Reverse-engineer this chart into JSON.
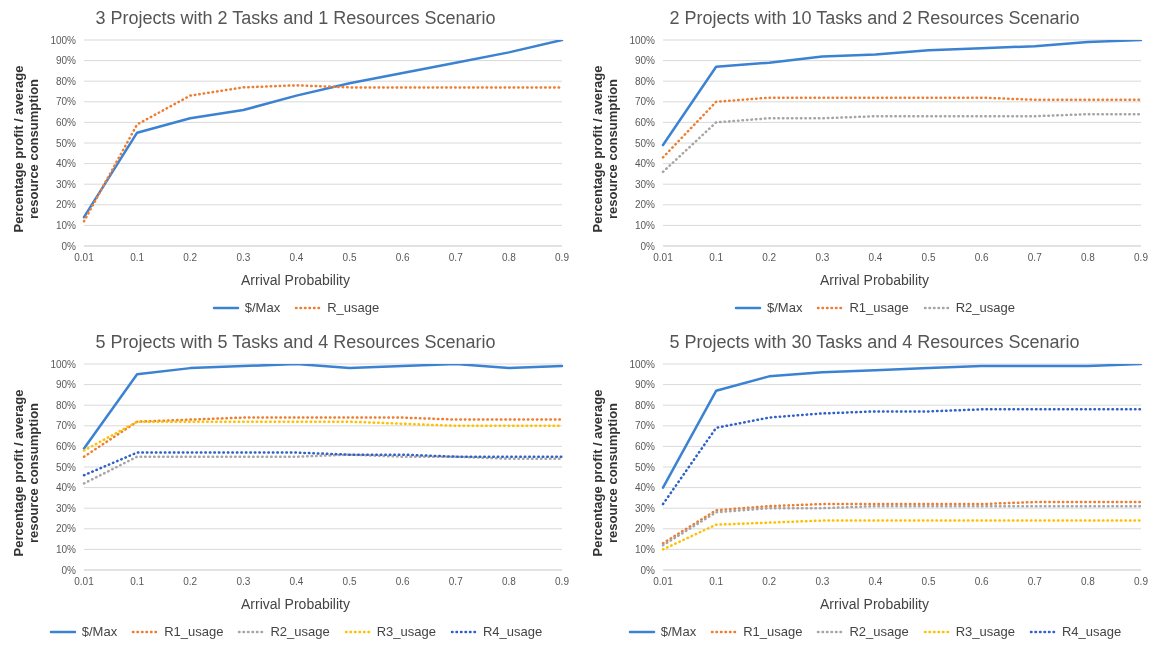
{
  "chart_data": [
    {
      "type": "line",
      "title": "3 Projects with 2 Tasks and 1 Resources Scenario",
      "xlabel": "Arrival Probability",
      "ylabel": "Percentage profit / average resource consumption",
      "categories": [
        "0.01",
        "0.1",
        "0.2",
        "0.3",
        "0.4",
        "0.5",
        "0.6",
        "0.7",
        "0.8",
        "0.9"
      ],
      "ylim": [
        0,
        100
      ],
      "yticks": [
        {
          "value": 0,
          "label": "0%"
        },
        {
          "value": 10,
          "label": "10%"
        },
        {
          "value": 20,
          "label": "20%"
        },
        {
          "value": 30,
          "label": "30%"
        },
        {
          "value": 40,
          "label": "40%"
        },
        {
          "value": 50,
          "label": "50%"
        },
        {
          "value": 60,
          "label": "60%"
        },
        {
          "value": 70,
          "label": "70%"
        },
        {
          "value": 80,
          "label": "80%"
        },
        {
          "value": 90,
          "label": "90%"
        },
        {
          "value": 100,
          "label": "100%"
        }
      ],
      "grid": "y",
      "legend": "bottom",
      "marker": "none",
      "series": [
        {
          "name": "$/Max",
          "color": "#3c82d2",
          "line_style": "solid",
          "values": [
            14,
            55,
            62,
            66,
            73,
            79,
            84,
            89,
            94,
            100
          ]
        },
        {
          "name": "R_usage",
          "color": "#ed7d31",
          "line_style": "dotted",
          "values": [
            12,
            59,
            73,
            77,
            78,
            77,
            77,
            77,
            77,
            77
          ]
        }
      ]
    },
    {
      "type": "line",
      "title": "2 Projects with 10 Tasks and 2 Resources Scenario",
      "xlabel": "Arrival Probability",
      "ylabel": "Percentage profit / average resource consumption",
      "categories": [
        "0.01",
        "0.1",
        "0.2",
        "0.3",
        "0.4",
        "0.5",
        "0.6",
        "0.7",
        "0.8",
        "0.9"
      ],
      "ylim": [
        0,
        100
      ],
      "yticks": [
        {
          "value": 0,
          "label": "0%"
        },
        {
          "value": 10,
          "label": "10%"
        },
        {
          "value": 20,
          "label": "20%"
        },
        {
          "value": 30,
          "label": "30%"
        },
        {
          "value": 40,
          "label": "40%"
        },
        {
          "value": 50,
          "label": "50%"
        },
        {
          "value": 60,
          "label": "60%"
        },
        {
          "value": 70,
          "label": "70%"
        },
        {
          "value": 80,
          "label": "80%"
        },
        {
          "value": 90,
          "label": "90%"
        },
        {
          "value": 100,
          "label": "100%"
        }
      ],
      "grid": "y",
      "legend": "bottom",
      "marker": "none",
      "series": [
        {
          "name": "$/Max",
          "color": "#3c82d2",
          "line_style": "solid",
          "values": [
            49,
            87,
            89,
            92,
            93,
            95,
            96,
            97,
            99,
            100
          ]
        },
        {
          "name": "R1_usage",
          "color": "#ed7d31",
          "line_style": "dotted",
          "values": [
            43,
            70,
            72,
            72,
            72,
            72,
            72,
            71,
            71,
            71
          ]
        },
        {
          "name": "R2_usage",
          "color": "#a5a5a5",
          "line_style": "dotted",
          "values": [
            36,
            60,
            62,
            62,
            63,
            63,
            63,
            63,
            64,
            64
          ]
        }
      ]
    },
    {
      "type": "line",
      "title": "5 Projects with 5 Tasks and 4 Resources Scenario",
      "xlabel": "Arrival Probability",
      "ylabel": "Percentage profit / average resource consumption",
      "categories": [
        "0.01",
        "0.1",
        "0.2",
        "0.3",
        "0.4",
        "0.5",
        "0.6",
        "0.7",
        "0.8",
        "0.9"
      ],
      "ylim": [
        0,
        100
      ],
      "yticks": [
        {
          "value": 0,
          "label": "0%"
        },
        {
          "value": 10,
          "label": "10%"
        },
        {
          "value": 20,
          "label": "20%"
        },
        {
          "value": 30,
          "label": "30%"
        },
        {
          "value": 40,
          "label": "40%"
        },
        {
          "value": 50,
          "label": "50%"
        },
        {
          "value": 60,
          "label": "60%"
        },
        {
          "value": 70,
          "label": "70%"
        },
        {
          "value": 80,
          "label": "80%"
        },
        {
          "value": 90,
          "label": "90%"
        },
        {
          "value": 100,
          "label": "100%"
        }
      ],
      "grid": "y",
      "legend": "bottom",
      "marker": "none",
      "series": [
        {
          "name": "$/Max",
          "color": "#3c82d2",
          "line_style": "solid",
          "values": [
            59,
            95,
            98,
            99,
            100,
            98,
            99,
            100,
            98,
            99
          ]
        },
        {
          "name": "R1_usage",
          "color": "#ed7d31",
          "line_style": "dotted",
          "values": [
            55,
            72,
            73,
            74,
            74,
            74,
            74,
            73,
            73,
            73
          ]
        },
        {
          "name": "R2_usage",
          "color": "#a5a5a5",
          "line_style": "dotted",
          "values": [
            42,
            55,
            55,
            55,
            55,
            56,
            55,
            55,
            54,
            54
          ]
        },
        {
          "name": "R3_usage",
          "color": "#ffc000",
          "line_style": "dotted",
          "values": [
            58,
            72,
            72,
            72,
            72,
            72,
            71,
            70,
            70,
            70
          ]
        },
        {
          "name": "R4_usage",
          "color": "#2f5fc8",
          "line_style": "dotted",
          "values": [
            46,
            57,
            57,
            57,
            57,
            56,
            56,
            55,
            55,
            55
          ]
        }
      ]
    },
    {
      "type": "line",
      "title": "5 Projects with 30 Tasks and 4 Resources Scenario",
      "xlabel": "Arrival Probability",
      "ylabel": "Percentage profit / average resource consumption",
      "categories": [
        "0.01",
        "0.1",
        "0.2",
        "0.3",
        "0.4",
        "0.5",
        "0.6",
        "0.7",
        "0.8",
        "0.9"
      ],
      "ylim": [
        0,
        100
      ],
      "yticks": [
        {
          "value": 0,
          "label": "0%"
        },
        {
          "value": 10,
          "label": "10%"
        },
        {
          "value": 20,
          "label": "20%"
        },
        {
          "value": 30,
          "label": "30%"
        },
        {
          "value": 40,
          "label": "40%"
        },
        {
          "value": 50,
          "label": "50%"
        },
        {
          "value": 60,
          "label": "60%"
        },
        {
          "value": 70,
          "label": "70%"
        },
        {
          "value": 80,
          "label": "80%"
        },
        {
          "value": 90,
          "label": "90%"
        },
        {
          "value": 100,
          "label": "100%"
        }
      ],
      "grid": "y",
      "legend": "bottom",
      "marker": "none",
      "series": [
        {
          "name": "$/Max",
          "color": "#3c82d2",
          "line_style": "solid",
          "values": [
            40,
            87,
            94,
            96,
            97,
            98,
            99,
            99,
            99,
            100
          ]
        },
        {
          "name": "R1_usage",
          "color": "#ed7d31",
          "line_style": "dotted",
          "values": [
            13,
            29,
            31,
            32,
            32,
            32,
            32,
            33,
            33,
            33
          ]
        },
        {
          "name": "R2_usage",
          "color": "#a5a5a5",
          "line_style": "dotted",
          "values": [
            12,
            28,
            30,
            30,
            31,
            31,
            31,
            31,
            31,
            31
          ]
        },
        {
          "name": "R3_usage",
          "color": "#ffc000",
          "line_style": "dotted",
          "values": [
            10,
            22,
            23,
            24,
            24,
            24,
            24,
            24,
            24,
            24
          ]
        },
        {
          "name": "R4_usage",
          "color": "#2f5fc8",
          "line_style": "dotted",
          "values": [
            32,
            69,
            74,
            76,
            77,
            77,
            78,
            78,
            78,
            78
          ]
        }
      ]
    }
  ]
}
